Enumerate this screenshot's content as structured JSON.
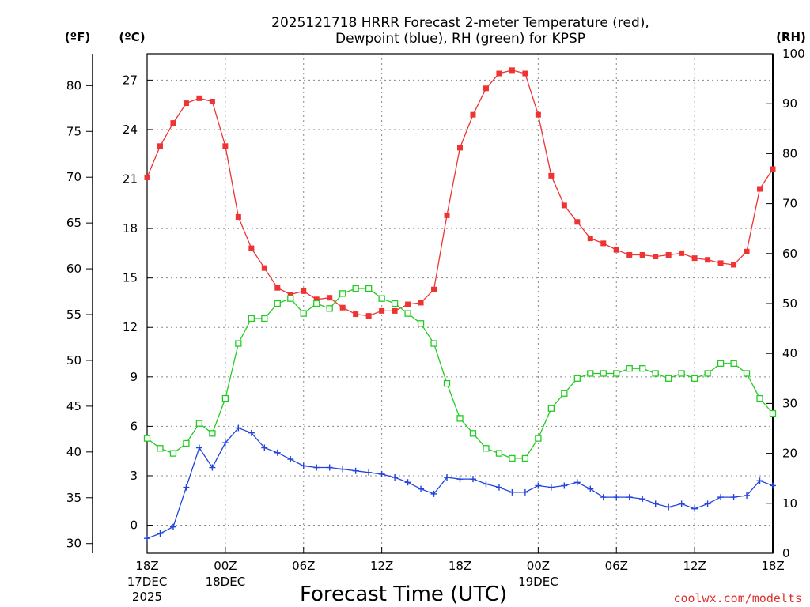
{
  "chart_data": {
    "type": "line",
    "title_line1": "2025121718 HRRR Forecast 2-meter Temperature (red),",
    "title_line2": "Dewpoint (blue), RH (green) for KPSP",
    "xlabel": "Forecast Time (UTC)",
    "credit": "coolwx.com/modelts",
    "axis_labels": {
      "fahrenheit": "(ºF)",
      "celsius": "(ºC)",
      "rh": "(RH)"
    },
    "x_ticks": [
      {
        "hour": 0,
        "label": "18Z",
        "sub1": "17DEC",
        "sub2": "2025"
      },
      {
        "hour": 6,
        "label": "00Z",
        "sub1": "18DEC",
        "sub2": ""
      },
      {
        "hour": 12,
        "label": "06Z",
        "sub1": "",
        "sub2": ""
      },
      {
        "hour": 18,
        "label": "12Z",
        "sub1": "",
        "sub2": ""
      },
      {
        "hour": 24,
        "label": "18Z",
        "sub1": "",
        "sub2": ""
      },
      {
        "hour": 30,
        "label": "00Z",
        "sub1": "19DEC",
        "sub2": ""
      },
      {
        "hour": 36,
        "label": "06Z",
        "sub1": "",
        "sub2": ""
      },
      {
        "hour": 42,
        "label": "12Z",
        "sub1": "",
        "sub2": ""
      },
      {
        "hour": 48,
        "label": "18Z",
        "sub1": "",
        "sub2": ""
      }
    ],
    "xlim": [
      0,
      48
    ],
    "celsius_ticks": [
      0,
      3,
      6,
      9,
      12,
      15,
      18,
      21,
      24,
      27
    ],
    "fahrenheit_ticks": [
      30,
      35,
      40,
      45,
      50,
      55,
      60,
      65,
      70,
      75,
      80
    ],
    "rh_ticks": [
      0,
      10,
      20,
      30,
      40,
      50,
      60,
      70,
      80,
      90,
      100
    ],
    "celsius_range": [
      -1.7,
      28.6
    ],
    "rh_range": [
      0,
      100
    ],
    "series": [
      {
        "name": "2-meter Temperature",
        "unit": "C",
        "color": "#ee3333",
        "marker": "filled-square",
        "values": [
          21.1,
          23.0,
          24.4,
          25.6,
          25.9,
          25.7,
          23.0,
          18.7,
          16.8,
          15.6,
          14.4,
          14.0,
          14.2,
          13.7,
          13.8,
          13.2,
          12.8,
          12.7,
          13.0,
          13.0,
          13.4,
          13.5,
          14.3,
          18.8,
          22.9,
          24.9,
          26.5,
          27.4,
          27.6,
          27.4,
          24.9,
          21.2,
          19.4,
          18.4,
          17.4,
          17.1,
          16.7,
          16.4,
          16.4,
          16.3,
          16.4,
          16.5,
          16.2,
          16.1,
          15.9,
          15.8,
          16.6,
          20.4,
          21.6
        ]
      },
      {
        "name": "Dewpoint",
        "unit": "C",
        "color": "#2244dd",
        "marker": "plus",
        "values": [
          -0.8,
          -0.5,
          -0.1,
          2.3,
          4.7,
          3.5,
          5.0,
          5.9,
          5.6,
          4.7,
          4.4,
          4.0,
          3.6,
          3.5,
          3.5,
          3.4,
          3.3,
          3.2,
          3.1,
          2.9,
          2.6,
          2.2,
          1.9,
          2.9,
          2.8,
          2.8,
          2.5,
          2.3,
          2.0,
          2.0,
          2.4,
          2.3,
          2.4,
          2.6,
          2.2,
          1.7,
          1.7,
          1.7,
          1.6,
          1.3,
          1.1,
          1.3,
          1.0,
          1.3,
          1.7,
          1.7,
          1.8,
          2.7,
          2.4
        ]
      },
      {
        "name": "RH",
        "unit": "%",
        "color": "#22cc22",
        "marker": "open-square",
        "values": [
          23,
          21,
          20,
          22,
          26,
          24,
          31,
          42,
          47,
          47,
          50,
          51,
          48,
          50,
          49,
          52,
          53,
          53,
          51,
          50,
          48,
          46,
          42,
          34,
          27,
          24,
          21,
          20,
          19,
          19,
          23,
          29,
          32,
          35,
          36,
          36,
          36,
          37,
          37,
          36,
          35,
          36,
          35,
          36,
          38,
          38,
          36,
          31,
          28
        ]
      }
    ]
  }
}
